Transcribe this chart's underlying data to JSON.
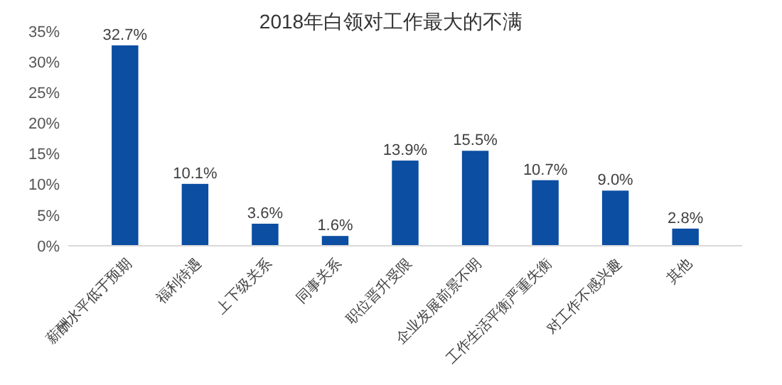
{
  "chart_data": {
    "type": "bar",
    "title": "2018年白领对工作最大的不满",
    "categories": [
      "薪酬水平低于预期",
      "福利待遇",
      "上下级关系",
      "同事关系",
      "职位晋升受限",
      "企业发展前景不明",
      "工作生活平衡严重失衡",
      "对工作不感兴趣",
      "其他"
    ],
    "values": [
      32.7,
      10.1,
      3.6,
      1.6,
      13.9,
      15.5,
      10.7,
      9.0,
      2.8
    ],
    "value_labels": [
      "32.7%",
      "10.1%",
      "3.6%",
      "1.6%",
      "13.9%",
      "15.5%",
      "10.7%",
      "9.0%",
      "2.8%"
    ],
    "color": "#0b4ea2",
    "ylim": [
      0,
      35
    ],
    "yticks": [
      {
        "value": 0,
        "label": "0%"
      },
      {
        "value": 5,
        "label": "5%"
      },
      {
        "value": 10,
        "label": "10%"
      },
      {
        "value": 15,
        "label": "15%"
      },
      {
        "value": 20,
        "label": "20%"
      },
      {
        "value": 25,
        "label": "25%"
      },
      {
        "value": 30,
        "label": "30%"
      },
      {
        "value": 35,
        "label": "35%"
      }
    ],
    "grid": false
  }
}
